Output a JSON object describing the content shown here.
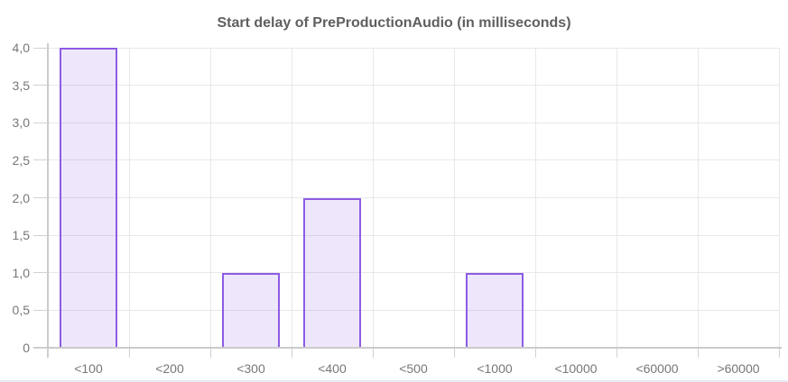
{
  "chart_data": {
    "type": "bar",
    "title": "Start delay of PreProductionAudio (in milliseconds)",
    "categories": [
      "<100",
      "<200",
      "<300",
      "<400",
      "<500",
      "<1000",
      "<10000",
      "<60000",
      ">60000"
    ],
    "values": [
      4,
      0,
      1,
      2,
      0,
      1,
      0,
      0,
      0
    ],
    "xlabel": "",
    "ylabel": "",
    "ylim": [
      0,
      4
    ],
    "ytick_step": 0.5,
    "ytick_labels": [
      "0",
      "0,5",
      "1,0",
      "1,5",
      "2,0",
      "2,5",
      "3,0",
      "3,5",
      "4,0"
    ],
    "decimal_separator": ",",
    "grid": true,
    "legend_position": "none"
  },
  "colors": {
    "bar_fill": "rgba(141,92,228,0.15)",
    "bar_border": "#8d5ce4",
    "gridline": "#e8e8e8",
    "axis_line": "#cbcbcb",
    "tick_line": "#d2d2d2",
    "title_text": "#5f5f5f",
    "axis_label_text": "#777777",
    "bottom_rule": "#e6e9f4",
    "background": "#ffffff"
  }
}
